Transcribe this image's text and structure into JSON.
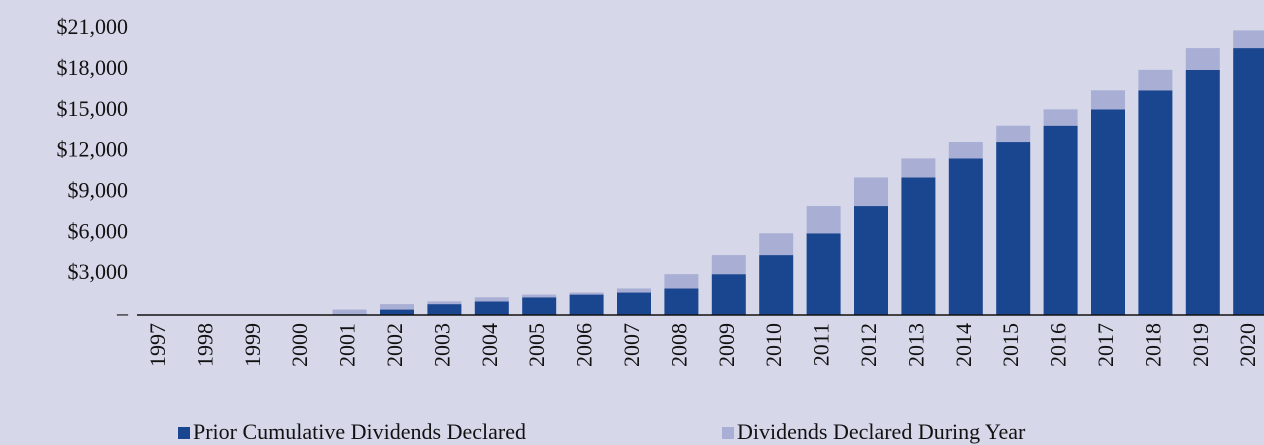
{
  "chart_data": {
    "type": "stacked_bar",
    "categories": [
      "1997",
      "1998",
      "1999",
      "2000",
      "2001",
      "2002",
      "2003",
      "2004",
      "2005",
      "2006",
      "2007",
      "2008",
      "2009",
      "2010",
      "2011",
      "2012",
      "2013",
      "2014",
      "2015",
      "2016",
      "2017",
      "2018",
      "2019",
      "2020"
    ],
    "series": [
      {
        "name": "Prior Cumulative Dividends Declared",
        "color": "#1a4690",
        "values": [
          0,
          0,
          0,
          0,
          50,
          400,
          800,
          1000,
          1300,
          1500,
          1650,
          1950,
          3000,
          4400,
          6000,
          8000,
          10100,
          11500,
          12700,
          13900,
          15100,
          16500,
          18000,
          19600
        ]
      },
      {
        "name": "Dividends Declared During Year",
        "color": "#a9afd4",
        "values": [
          0,
          0,
          0,
          50,
          350,
          400,
          200,
          300,
          200,
          150,
          300,
          1050,
          1400,
          1600,
          2000,
          2100,
          1400,
          1200,
          1200,
          1200,
          1400,
          1500,
          1600,
          1300
        ]
      }
    ],
    "ylim": [
      0,
      21000
    ],
    "yticks": [
      {
        "value": 0,
        "label": "–"
      },
      {
        "value": 3000,
        "label": "$3,000"
      },
      {
        "value": 6000,
        "label": "$6,000"
      },
      {
        "value": 9000,
        "label": "$9,000"
      },
      {
        "value": 12000,
        "label": "$12,000"
      },
      {
        "value": 15000,
        "label": "$15,000"
      },
      {
        "value": 18000,
        "label": "$18,000"
      },
      {
        "value": 21000,
        "label": "$21,000"
      }
    ],
    "legend": "bottom"
  }
}
